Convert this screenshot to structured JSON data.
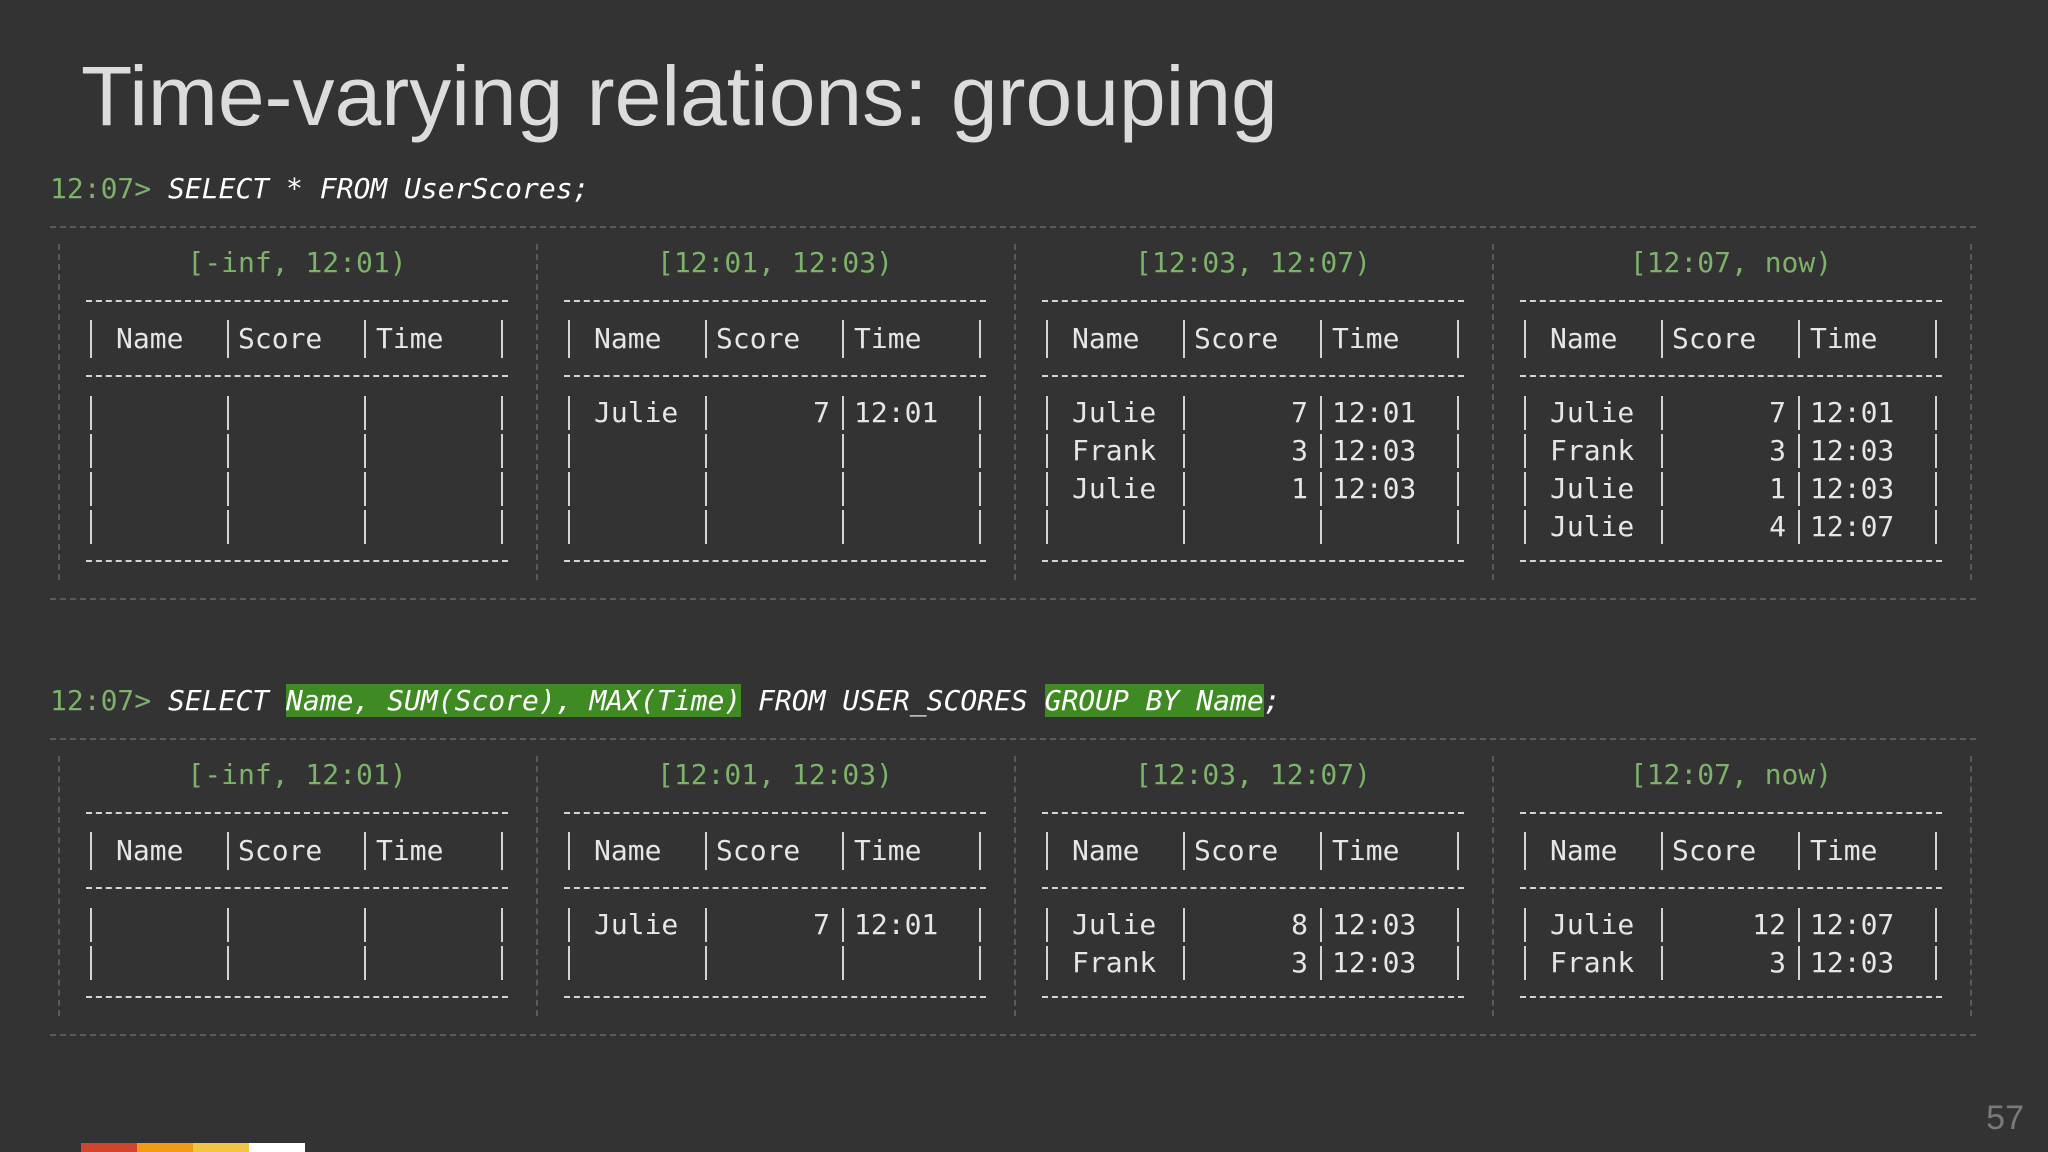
{
  "slide": {
    "title": "Time-varying relations: grouping",
    "page_number": "57"
  },
  "colors": {
    "background": "#333333",
    "prompt_green": "#7cb26a",
    "highlight_green": "#3f8a23",
    "brand_bar": [
      "#d1452f",
      "#f39a13",
      "#f3c443",
      "#ffffff"
    ]
  },
  "queries": [
    {
      "prompt": "12:07>",
      "segments": [
        {
          "text": " SELECT * FROM UserScores;",
          "highlight": false
        }
      ],
      "panels": [
        {
          "interval": "[-inf, 12:01)",
          "headers": [
            "Name",
            "Score",
            "Time"
          ],
          "rows": [
            [
              "",
              "",
              ""
            ],
            [
              "",
              "",
              ""
            ],
            [
              "",
              "",
              ""
            ],
            [
              "",
              "",
              ""
            ]
          ]
        },
        {
          "interval": "[12:01, 12:03)",
          "headers": [
            "Name",
            "Score",
            "Time"
          ],
          "rows": [
            [
              "Julie",
              "7",
              "12:01"
            ],
            [
              "",
              "",
              ""
            ],
            [
              "",
              "",
              ""
            ],
            [
              "",
              "",
              ""
            ]
          ]
        },
        {
          "interval": "[12:03, 12:07)",
          "headers": [
            "Name",
            "Score",
            "Time"
          ],
          "rows": [
            [
              "Julie",
              "7",
              "12:01"
            ],
            [
              "Frank",
              "3",
              "12:03"
            ],
            [
              "Julie",
              "1",
              "12:03"
            ],
            [
              "",
              "",
              ""
            ]
          ]
        },
        {
          "interval": "[12:07, now)",
          "headers": [
            "Name",
            "Score",
            "Time"
          ],
          "rows": [
            [
              "Julie",
              "7",
              "12:01"
            ],
            [
              "Frank",
              "3",
              "12:03"
            ],
            [
              "Julie",
              "1",
              "12:03"
            ],
            [
              "Julie",
              "4",
              "12:07"
            ]
          ]
        }
      ]
    },
    {
      "prompt": "12:07>",
      "segments": [
        {
          "text": " SELECT ",
          "highlight": false
        },
        {
          "text": "Name, SUM(Score), MAX(Time)",
          "highlight": true
        },
        {
          "text": " FROM USER_SCORES ",
          "highlight": false
        },
        {
          "text": "GROUP BY Name",
          "highlight": true
        },
        {
          "text": ";",
          "highlight": false
        }
      ],
      "panels": [
        {
          "interval": "[-inf, 12:01)",
          "headers": [
            "Name",
            "Score",
            "Time"
          ],
          "rows": [
            [
              "",
              "",
              ""
            ],
            [
              "",
              "",
              ""
            ]
          ]
        },
        {
          "interval": "[12:01, 12:03)",
          "headers": [
            "Name",
            "Score",
            "Time"
          ],
          "rows": [
            [
              "Julie",
              "7",
              "12:01"
            ],
            [
              "",
              "",
              ""
            ]
          ]
        },
        {
          "interval": "[12:03, 12:07)",
          "headers": [
            "Name",
            "Score",
            "Time"
          ],
          "rows": [
            [
              "Julie",
              "8",
              "12:03"
            ],
            [
              "Frank",
              "3",
              "12:03"
            ]
          ]
        },
        {
          "interval": "[12:07, now)",
          "headers": [
            "Name",
            "Score",
            "Time"
          ],
          "rows": [
            [
              "Julie",
              "12",
              "12:07"
            ],
            [
              "Frank",
              "3",
              "12:03"
            ]
          ]
        }
      ]
    }
  ]
}
